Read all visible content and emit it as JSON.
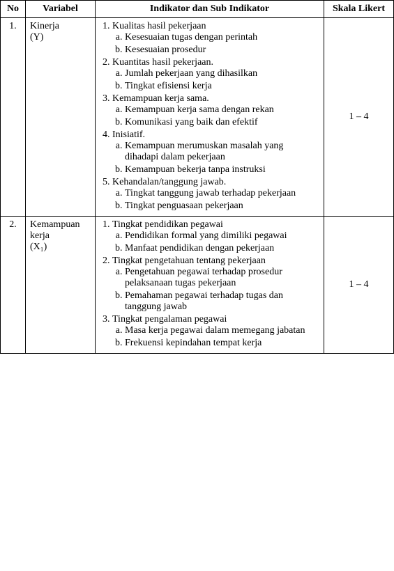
{
  "headers": {
    "no": "No",
    "variabel": "Variabel",
    "indikator": "Indikator dan Sub Indikator",
    "skala": "Skala Likert"
  },
  "rows": [
    {
      "no": "1.",
      "variabel_line1": "Kinerja",
      "variabel_line2": "(Y)",
      "skala": "1 – 4",
      "ind": {
        "i1": "Kualitas hasil pekerjaan",
        "i1a": "Kesesuaian tugas dengan perintah",
        "i1b": "Kesesuaian prosedur",
        "i2": "Kuantitas hasil pekerjaan.",
        "i2a": "Jumlah pekerjaan yang dihasilkan",
        "i2b": "Tingkat efisiensi kerja",
        "i3": "Kemampuan kerja sama.",
        "i3a": "Kemampuan kerja sama dengan rekan",
        "i3b": "Komunikasi yang baik dan efektif",
        "i4": "Inisiatif.",
        "i4a": "Kemampuan merumuskan masalah yang dihadapi dalam pekerjaan",
        "i4b": "Kemampuan bekerja tanpa instruksi",
        "i5": "Kehandalan/tanggung jawab.",
        "i5a": "Tingkat tanggung jawab terhadap  pekerjaan",
        "i5b": "Tingkat penguasaan pekerjaan"
      }
    },
    {
      "no": "2.",
      "variabel_line1": "Kemampuan kerja",
      "variabel_line2": "(X₁)",
      "skala": "1 – 4",
      "ind": {
        "i1": "Tingkat pendidikan pegawai",
        "i1a": "Pendidikan formal yang dimiliki pegawai",
        "i1b": "Manfaat pendidikan dengan pekerjaan",
        "i2": "Tingkat pengetahuan tentang pekerjaan",
        "i2a": "Pengetahuan pegawai terhadap prosedur pelaksanaan tugas pekerjaan",
        "i2b": "Pemahaman pegawai terhadap tugas dan tanggung jawab",
        "i3": "Tingkat pengalaman pegawai",
        "i3a": "Masa kerja pegawai dalam memegang jabatan",
        "i3b": "Frekuensi kepindahan tempat kerja"
      }
    }
  ]
}
